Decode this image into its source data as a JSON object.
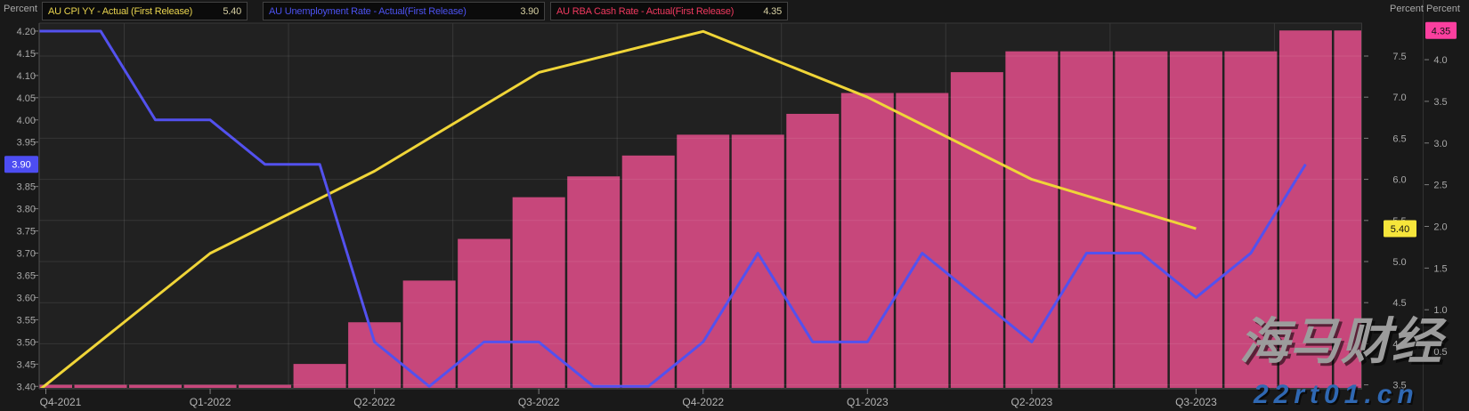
{
  "axes": {
    "left": {
      "title": "Percent",
      "ticks": [
        "4.20",
        "4.15",
        "4.10",
        "4.05",
        "4.00",
        "3.95",
        "3.90",
        "3.85",
        "3.80",
        "3.75",
        "3.70",
        "3.65",
        "3.60",
        "3.55",
        "3.50",
        "3.45",
        "3.40"
      ]
    },
    "right_inner": {
      "title": "Percent",
      "ticks": [
        "7.5",
        "7.0",
        "6.5",
        "6.0",
        "5.5",
        "5.0",
        "4.5",
        "4.0",
        "3.5"
      ]
    },
    "right_outer": {
      "title": "Percent",
      "ticks": [
        "4.0",
        "3.5",
        "3.0",
        "2.5",
        "2.0",
        "1.5",
        "1.0",
        "0.5"
      ]
    }
  },
  "legend": [
    {
      "label": "AU CPI YY - Actual (First Release)",
      "value": "5.40",
      "color": "#e9d44f"
    },
    {
      "label": "AU Unemployment Rate - Actual(First Release)",
      "value": "3.90",
      "color": "#4c52f0"
    },
    {
      "label": "AU RBA Cash Rate - Actual(First Release)",
      "value": "4.35",
      "color": "#f0395f"
    }
  ],
  "badges": [
    {
      "axis": "left",
      "value": "3.90",
      "bg": "#4d4df2",
      "fg": "#ffffff"
    },
    {
      "axis": "right_inner",
      "value": "5.40",
      "bg": "#f6e53b",
      "fg": "#111111"
    },
    {
      "axis": "right_outer",
      "value": "4.35",
      "bg": "#fb3f9f",
      "fg": "#111111"
    }
  ],
  "watermarks": {
    "brand": "海马财经",
    "url": "22rt01.cn"
  },
  "chart_data": {
    "type": "combo",
    "title": "",
    "x_tick_labels": [
      "Q4-2021",
      "Q1-2022",
      "Q2-2022",
      "Q3-2022",
      "Q4-2022",
      "Q1-2023",
      "Q2-2023",
      "Q3-2023"
    ],
    "grid": true,
    "legend_position": "top",
    "axis_ranges": {
      "left": [
        3.4,
        4.2
      ],
      "right_inner": [
        3.5,
        7.5
      ],
      "right_outer": [
        0.5,
        4.0
      ]
    },
    "series": [
      {
        "name": "AU RBA Cash Rate - Actual(First Release)",
        "type": "bar",
        "axis": "right_outer",
        "color": "#c7477b",
        "monthly_values": [
          0.1,
          0.1,
          0.1,
          0.1,
          0.1,
          0.35,
          0.85,
          1.35,
          1.85,
          2.35,
          2.6,
          2.85,
          3.1,
          3.1,
          3.35,
          3.6,
          3.6,
          3.85,
          4.1,
          4.1,
          4.1,
          4.1,
          4.1,
          4.35,
          4.35
        ]
      },
      {
        "name": "AU Unemployment Rate - Actual(First Release)",
        "type": "line",
        "axis": "left",
        "color": "#5351ee",
        "monthly_values": [
          4.2,
          4.2,
          4.0,
          4.0,
          3.9,
          3.9,
          3.5,
          3.4,
          3.5,
          3.5,
          3.4,
          3.4,
          3.5,
          3.7,
          3.5,
          3.5,
          3.7,
          3.6,
          3.5,
          3.7,
          3.7,
          3.6,
          3.7,
          3.9
        ]
      },
      {
        "name": "AU CPI YY - Actual (First Release)",
        "type": "line",
        "axis": "right_inner",
        "color": "#f0d538",
        "quarterly_values": [
          3.5,
          5.1,
          6.1,
          7.3,
          7.8,
          7.0,
          6.0,
          5.4
        ]
      }
    ]
  }
}
